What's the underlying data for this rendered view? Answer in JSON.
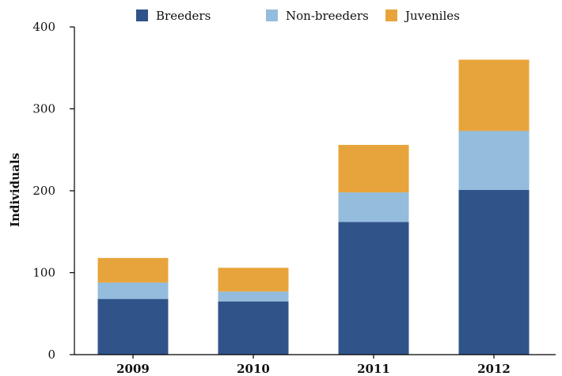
{
  "chart_data": {
    "type": "bar",
    "stacked": true,
    "categories": [
      "2009",
      "2010",
      "2011",
      "2012"
    ],
    "series": [
      {
        "name": "Breeders",
        "color": "#30548a",
        "values": [
          68,
          65,
          162,
          201
        ]
      },
      {
        "name": "Non-breeders",
        "color": "#94bcdd",
        "values": [
          20,
          12,
          36,
          72
        ]
      },
      {
        "name": "Juveniles",
        "color": "#e8a43c",
        "values": [
          30,
          29,
          58,
          87
        ]
      }
    ],
    "title": "",
    "xlabel": "",
    "ylabel": "Individuals",
    "ylim": [
      0,
      400
    ],
    "yticks": [
      "0",
      "100",
      "200",
      "300",
      "400"
    ],
    "grid": false,
    "legend_position": "top"
  }
}
